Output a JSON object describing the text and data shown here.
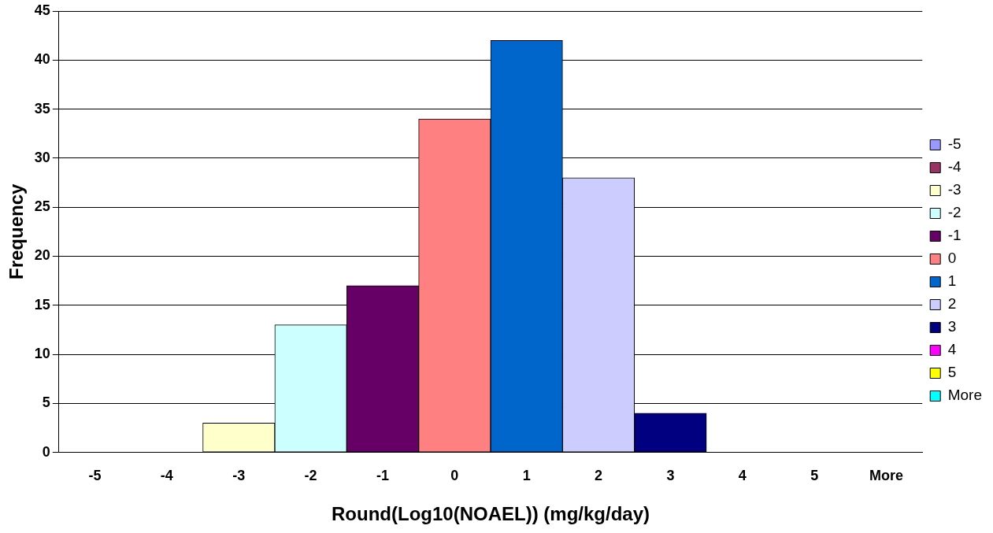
{
  "chart_data": {
    "type": "bar",
    "xlabel": "Round(Log10(NOAEL)) (mg/kg/day)",
    "ylabel": "Frequency",
    "categories": [
      "-5",
      "-4",
      "-3",
      "-2",
      "-1",
      "0",
      "1",
      "2",
      "3",
      "4",
      "5",
      "More"
    ],
    "stacked": true,
    "series": [
      {
        "name": "-5",
        "color": "#9999ff",
        "values": [
          0,
          null,
          null,
          null,
          null,
          null,
          null,
          null,
          null,
          null,
          null,
          null
        ]
      },
      {
        "name": "-4",
        "color": "#993366",
        "values": [
          null,
          0,
          null,
          null,
          null,
          null,
          null,
          null,
          null,
          null,
          null,
          null
        ]
      },
      {
        "name": "-3",
        "color": "#ffffcc",
        "values": [
          null,
          null,
          3,
          null,
          null,
          null,
          null,
          null,
          null,
          null,
          null,
          null
        ]
      },
      {
        "name": "-2",
        "color": "#ccffff",
        "values": [
          null,
          null,
          null,
          13,
          null,
          null,
          null,
          null,
          null,
          null,
          null,
          null
        ]
      },
      {
        "name": "-1",
        "color": "#660066",
        "values": [
          null,
          null,
          null,
          null,
          17,
          null,
          null,
          null,
          null,
          null,
          null,
          null
        ]
      },
      {
        "name": "0",
        "color": "#ff8080",
        "values": [
          null,
          null,
          null,
          null,
          null,
          34,
          null,
          null,
          null,
          null,
          null,
          null
        ]
      },
      {
        "name": "1",
        "color": "#0066cc",
        "values": [
          null,
          null,
          null,
          null,
          null,
          null,
          42,
          null,
          null,
          null,
          null,
          null
        ]
      },
      {
        "name": "2",
        "color": "#ccccff",
        "values": [
          null,
          null,
          null,
          null,
          null,
          null,
          null,
          28,
          null,
          null,
          null,
          null
        ]
      },
      {
        "name": "3",
        "color": "#000080",
        "values": [
          null,
          null,
          null,
          null,
          null,
          null,
          null,
          null,
          4,
          null,
          null,
          null
        ]
      },
      {
        "name": "4",
        "color": "#ff00ff",
        "values": [
          null,
          null,
          null,
          null,
          null,
          null,
          null,
          null,
          null,
          0,
          null,
          null
        ]
      },
      {
        "name": "5",
        "color": "#ffff00",
        "values": [
          null,
          null,
          null,
          null,
          null,
          null,
          null,
          null,
          null,
          null,
          0,
          null
        ]
      },
      {
        "name": "More",
        "color": "#00ffff",
        "values": [
          null,
          null,
          null,
          null,
          null,
          null,
          null,
          null,
          null,
          null,
          null,
          0
        ]
      }
    ],
    "ylim": [
      0,
      45
    ],
    "yticks": [
      0,
      5,
      10,
      15,
      20,
      25,
      30,
      35,
      40,
      45
    ],
    "grid": "y",
    "legend": "right"
  }
}
